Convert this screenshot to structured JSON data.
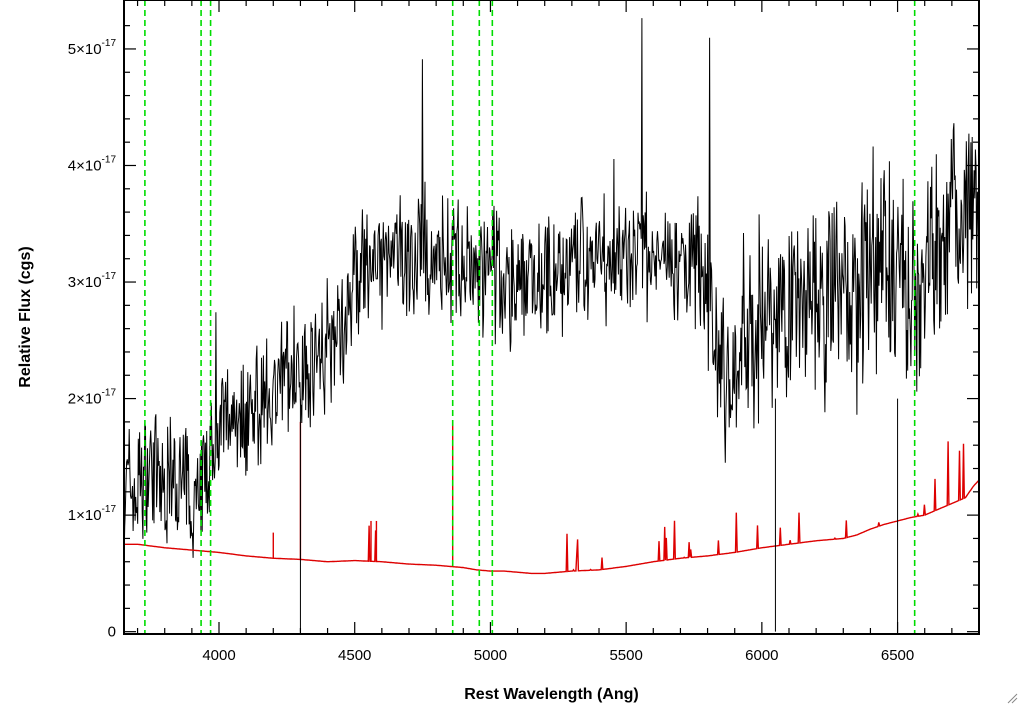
{
  "chart_data": {
    "type": "line",
    "title": "",
    "xlabel": "Rest Wavelength (Ang)",
    "ylabel": "Relative Flux (cgs)",
    "xlim": [
      3650,
      6800
    ],
    "ylim": [
      -2e-19,
      5.42e-17
    ],
    "x_ticks": [
      {
        "value": 4000,
        "label": "4000"
      },
      {
        "value": 4500,
        "label": "4500"
      },
      {
        "value": 5000,
        "label": "5000"
      },
      {
        "value": 5500,
        "label": "5500"
      },
      {
        "value": 6000,
        "label": "6000"
      },
      {
        "value": 6500,
        "label": "6500"
      }
    ],
    "y_ticks": [
      {
        "value": 0,
        "mantissa": "0",
        "exponent": ""
      },
      {
        "value": 1e-17,
        "mantissa": "1×10",
        "exponent": "-17"
      },
      {
        "value": 2e-17,
        "mantissa": "2×10",
        "exponent": "-17"
      },
      {
        "value": 3e-17,
        "mantissa": "3×10",
        "exponent": "-17"
      },
      {
        "value": 4e-17,
        "mantissa": "4×10",
        "exponent": "-17"
      },
      {
        "value": 5e-17,
        "mantissa": "5×10",
        "exponent": "-17"
      }
    ],
    "grid": false,
    "legend": "none",
    "reference_lines": {
      "color": "#00dd00",
      "style": "dashed",
      "x": [
        3727,
        3934,
        3969,
        4861,
        4959,
        5007,
        6563
      ]
    },
    "series": [
      {
        "color": "#000000",
        "description_values": "observed spectrum (noisy)",
        "x": [
          3650,
          3670,
          3690,
          3710,
          3730,
          3750,
          3775,
          3800,
          3825,
          3850,
          3875,
          3900,
          3925,
          3950,
          3975,
          4000,
          4050,
          4100,
          4150,
          4200,
          4250,
          4300,
          4350,
          4400,
          4450,
          4500,
          4550,
          4600,
          4650,
          4700,
          4750,
          4800,
          4850,
          4900,
          4950,
          5000,
          5050,
          5100,
          5150,
          5200,
          5250,
          5300,
          5350,
          5400,
          5450,
          5500,
          5550,
          5600,
          5650,
          5700,
          5750,
          5800,
          5850,
          5900,
          5950,
          6000,
          6050,
          6100,
          6150,
          6200,
          6250,
          6300,
          6350,
          6400,
          6450,
          6500,
          6550,
          6600,
          6650,
          6700,
          6750,
          6780,
          6800
        ],
        "y": [
          1.2e-17,
          1.3e-17,
          1.1e-17,
          1.4e-17,
          1.3e-17,
          1.5e-17,
          1.3e-17,
          1.2e-17,
          1.3e-17,
          1.2e-17,
          1.25e-17,
          1.1e-17,
          1.3e-17,
          1.4e-17,
          1.45e-17,
          1.7e-17,
          1.9e-17,
          1.85e-17,
          2e-17,
          2.05e-17,
          2.2e-17,
          2.25e-17,
          2.3e-17,
          2.5e-17,
          2.6e-17,
          3e-17,
          3.1e-17,
          3.1e-17,
          3.2e-17,
          3.2e-17,
          3.25e-17,
          3.2e-17,
          3.2e-17,
          3.1e-17,
          3.05e-17,
          3.1e-17,
          3e-17,
          2.95e-17,
          3.1e-17,
          3.05e-17,
          3.1e-17,
          3.15e-17,
          3.2e-17,
          3.15e-17,
          3.2e-17,
          3.2e-17,
          3.25e-17,
          3.2e-17,
          3.25e-17,
          3.1e-17,
          3.2e-17,
          3e-17,
          2.2e-17,
          2.3e-17,
          2.5e-17,
          2.8e-17,
          2.6e-17,
          2.9e-17,
          2.8e-17,
          3e-17,
          2.9e-17,
          3e-17,
          2.7e-17,
          3.1e-17,
          3.4e-17,
          3.1e-17,
          2.8e-17,
          3.1e-17,
          3.3e-17,
          3.5e-17,
          3.6e-17,
          3.8e-17,
          3.5e-17
        ]
      },
      {
        "color": "#dd0000",
        "description_values": "model / continuum spectrum",
        "x": [
          3650,
          3700,
          3800,
          3900,
          4000,
          4100,
          4200,
          4300,
          4400,
          4500,
          4600,
          4700,
          4800,
          4850,
          4900,
          4950,
          5000,
          5050,
          5100,
          5150,
          5200,
          5300,
          5400,
          5500,
          5600,
          5700,
          5800,
          5900,
          6000,
          6100,
          6200,
          6300,
          6350,
          6400,
          6450,
          6500,
          6550,
          6600,
          6650,
          6700,
          6750,
          6780,
          6800
        ],
        "y": [
          7.5e-18,
          7.5e-18,
          7.2e-18,
          7e-18,
          6.8e-18,
          6.5e-18,
          6.3e-18,
          6.2e-18,
          6e-18,
          6.1e-18,
          6e-18,
          5.8e-18,
          5.7e-18,
          5.6e-18,
          5.5e-18,
          5.3e-18,
          5.2e-18,
          5.2e-18,
          5.1e-18,
          5e-18,
          5e-18,
          5.2e-18,
          5.3e-18,
          5.6e-18,
          6e-18,
          6.3e-18,
          6.5e-18,
          6.8e-18,
          7.2e-18,
          7.5e-18,
          7.8e-18,
          8e-18,
          8.3e-18,
          8.8e-18,
          9.2e-18,
          9.5e-18,
          9.8e-18,
          1e-17,
          1.05e-17,
          1.1e-17,
          1.15e-17,
          1.25e-17,
          1.3e-17
        ]
      }
    ]
  }
}
